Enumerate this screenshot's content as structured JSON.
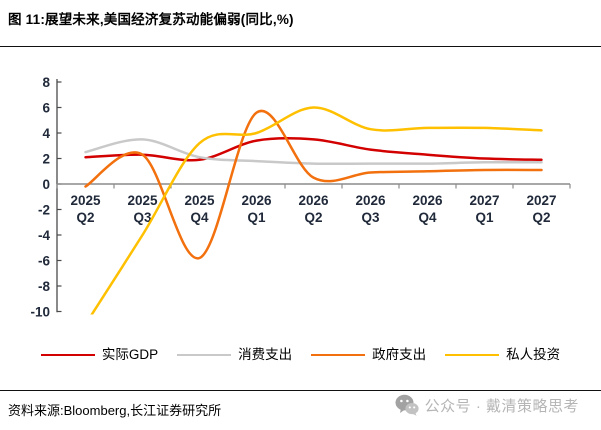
{
  "title": "图 11:展望未来,美国经济复苏动能偏弱(同比,%)",
  "chart_data": {
    "type": "line",
    "smooth": true,
    "categories": [
      "2025 Q2",
      "2025 Q3",
      "2025 Q4",
      "2026 Q1",
      "2026 Q2",
      "2026 Q3",
      "2026 Q4",
      "2027 Q1",
      "2027 Q2"
    ],
    "series": [
      {
        "name": "实际GDP",
        "color": "#d30000",
        "values": [
          2.1,
          2.3,
          1.9,
          3.4,
          3.5,
          2.7,
          2.3,
          2.0,
          1.9
        ]
      },
      {
        "name": "消费支出",
        "color": "#c9c9c9",
        "values": [
          2.5,
          3.5,
          2.1,
          1.8,
          1.6,
          1.6,
          1.6,
          1.7,
          1.7
        ]
      },
      {
        "name": "政府支出",
        "color": "#f2700d",
        "values": [
          -0.2,
          2.3,
          -5.8,
          5.6,
          0.5,
          0.9,
          1.0,
          1.1,
          1.1
        ]
      },
      {
        "name": "私人投资",
        "color": "#ffc000",
        "values": [
          -11,
          -4,
          3.2,
          4.0,
          6.0,
          4.3,
          4.4,
          4.4,
          4.2
        ]
      }
    ],
    "title": "",
    "xlabel": "",
    "ylabel": "",
    "ylim": [
      -10,
      8
    ],
    "yticks": [
      8,
      6,
      4,
      2,
      0,
      "-2",
      "-4",
      "-6",
      "-8",
      "-10"
    ],
    "grid": false,
    "legend_position": "bottom",
    "axis_color": "#4a4a4a",
    "zero_line_color": "#8c8c8c"
  },
  "footer": {
    "source": "资料来源:Bloomberg,长江证券研究所"
  },
  "watermark": {
    "icon": "wechat-icon",
    "text": "公众号 · 戴清策略思考"
  }
}
